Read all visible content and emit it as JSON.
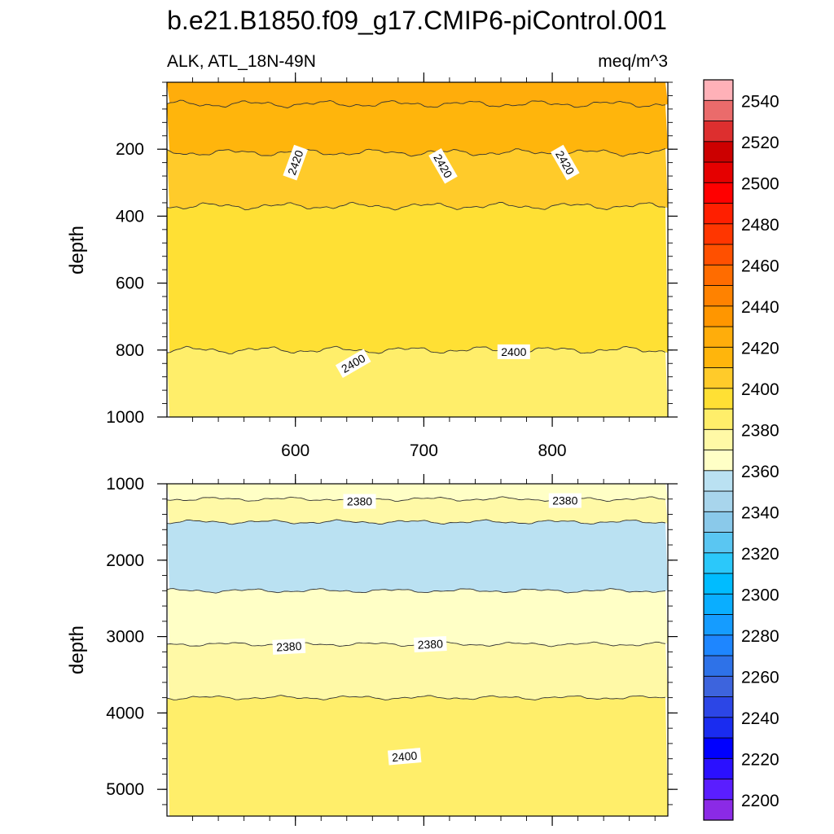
{
  "chart_data": {
    "type": "heatmap",
    "title": "b.e21.B1850.f09_g17.CMIP6-piControl.001",
    "subtitle_left": "ALK, ATL_18N-49N",
    "units": "meq/m^3",
    "ylabel": "depth",
    "xaxis": {
      "range": [
        500,
        890
      ],
      "ticks": [
        600,
        700,
        800
      ]
    },
    "panels": [
      {
        "name": "upper",
        "ylim": [
          1000,
          0
        ],
        "yticks": [
          200,
          400,
          600,
          800,
          1000
        ],
        "bands": [
          {
            "top": 0,
            "bottom": 65,
            "color": "#ffad0b"
          },
          {
            "top": 65,
            "bottom": 210,
            "color": "#ffb50c"
          },
          {
            "top": 210,
            "bottom": 370,
            "color": "#ffcb2a"
          },
          {
            "top": 370,
            "bottom": 800,
            "color": "#ffe034"
          },
          {
            "top": 800,
            "bottom": 1000,
            "color": "#ffee6a"
          }
        ],
        "contour_labels": [
          {
            "text": "2420",
            "x": 600,
            "y": 240,
            "rot": -70
          },
          {
            "text": "2420",
            "x": 715,
            "y": 250,
            "rot": 60
          },
          {
            "text": "2420",
            "x": 810,
            "y": 240,
            "rot": 60
          },
          {
            "text": "2400",
            "x": 645,
            "y": 840,
            "rot": -30
          },
          {
            "text": "2400",
            "x": 770,
            "y": 805,
            "rot": 0
          }
        ]
      },
      {
        "name": "lower",
        "ylim": [
          5350,
          1000
        ],
        "yticks": [
          1000,
          2000,
          3000,
          4000,
          5000
        ],
        "bands": [
          {
            "top": 1000,
            "bottom": 1200,
            "color": "#ffffc6"
          },
          {
            "top": 1200,
            "bottom": 1500,
            "color": "#fff9a6"
          },
          {
            "top": 1500,
            "bottom": 2400,
            "color": "#bae1f2"
          },
          {
            "top": 2400,
            "bottom": 3100,
            "color": "#ffffc6"
          },
          {
            "top": 3100,
            "bottom": 3800,
            "color": "#fff9a6"
          },
          {
            "top": 3800,
            "bottom": 5350,
            "color": "#ffee6a"
          }
        ],
        "contour_labels": [
          {
            "text": "2380",
            "x": 650,
            "y": 1230,
            "rot": 0
          },
          {
            "text": "2380",
            "x": 810,
            "y": 1220,
            "rot": 0
          },
          {
            "text": "2380",
            "x": 595,
            "y": 3130,
            "rot": -3
          },
          {
            "text": "2380",
            "x": 705,
            "y": 3100,
            "rot": -3
          },
          {
            "text": "2400",
            "x": 685,
            "y": 4570,
            "rot": -5
          }
        ]
      }
    ],
    "colorbar": {
      "levels": [
        2200,
        2210,
        2220,
        2230,
        2240,
        2250,
        2260,
        2270,
        2280,
        2290,
        2300,
        2310,
        2320,
        2330,
        2340,
        2350,
        2360,
        2370,
        2380,
        2390,
        2400,
        2410,
        2420,
        2430,
        2440,
        2450,
        2460,
        2470,
        2480,
        2490,
        2500,
        2510,
        2520,
        2530,
        2540,
        2550
      ],
      "labels": [
        "2200",
        "2220",
        "2240",
        "2260",
        "2280",
        "2300",
        "2320",
        "2340",
        "2360",
        "2380",
        "2400",
        "2420",
        "2440",
        "2460",
        "2480",
        "2500",
        "2520",
        "2540"
      ],
      "colors": [
        "#8b2ae6",
        "#5a1eff",
        "#2b10ff",
        "#0000ff",
        "#1a2cf0",
        "#2c46e6",
        "#3d64dd",
        "#2e72e8",
        "#1e86ff",
        "#159cff",
        "#0aaeff",
        "#00bcff",
        "#2bc8fa",
        "#5ac6f2",
        "#8ac9ea",
        "#a8d5ec",
        "#bae1f2",
        "#ffffc6",
        "#fff9a6",
        "#ffee6a",
        "#ffe034",
        "#ffcb2a",
        "#ffb50c",
        "#ffad0b",
        "#ff9600",
        "#ff8200",
        "#ff6c00",
        "#ff5000",
        "#ff3600",
        "#ff1f00",
        "#ff0000",
        "#e50000",
        "#cc0000",
        "#dd2f2f",
        "#ea6b6b",
        "#ffb1b8"
      ]
    }
  }
}
